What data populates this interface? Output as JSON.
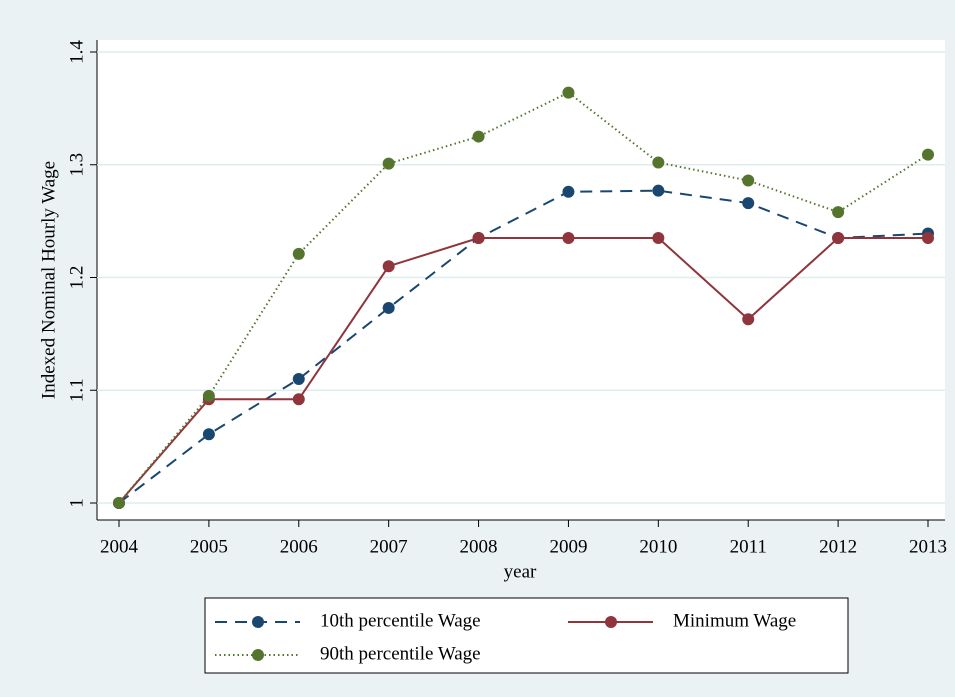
{
  "chart_data": {
    "type": "line",
    "x_label": "year",
    "y_label": "Indexed Nominal Hourly Wage",
    "x": [
      2004,
      2005,
      2006,
      2007,
      2008,
      2009,
      2010,
      2011,
      2012,
      2013
    ],
    "xlim": [
      2004,
      2013
    ],
    "xticks": [
      2004,
      2005,
      2006,
      2007,
      2008,
      2009,
      2010,
      2011,
      2012,
      2013
    ],
    "ylim": [
      1,
      1.4
    ],
    "yticks": [
      1,
      1.1,
      1.2,
      1.3,
      1.4
    ],
    "grid": true,
    "legend": "bottom",
    "series": [
      {
        "name": "10th percentile Wage",
        "color": "#1a476f",
        "line_style": "dash",
        "values": [
          1.0,
          1.061,
          1.11,
          1.173,
          1.235,
          1.276,
          1.277,
          1.266,
          1.235,
          1.239
        ]
      },
      {
        "name": "Minimum Wage",
        "color": "#90353b",
        "line_style": "solid",
        "values": [
          1.0,
          1.092,
          1.092,
          1.21,
          1.235,
          1.235,
          1.235,
          1.163,
          1.235,
          1.235
        ]
      },
      {
        "name": "90th percentile Wage",
        "color": "#55752f",
        "line_style": "dot",
        "values": [
          1.0,
          1.095,
          1.221,
          1.301,
          1.325,
          1.364,
          1.302,
          1.286,
          1.258,
          1.309
        ]
      }
    ]
  }
}
